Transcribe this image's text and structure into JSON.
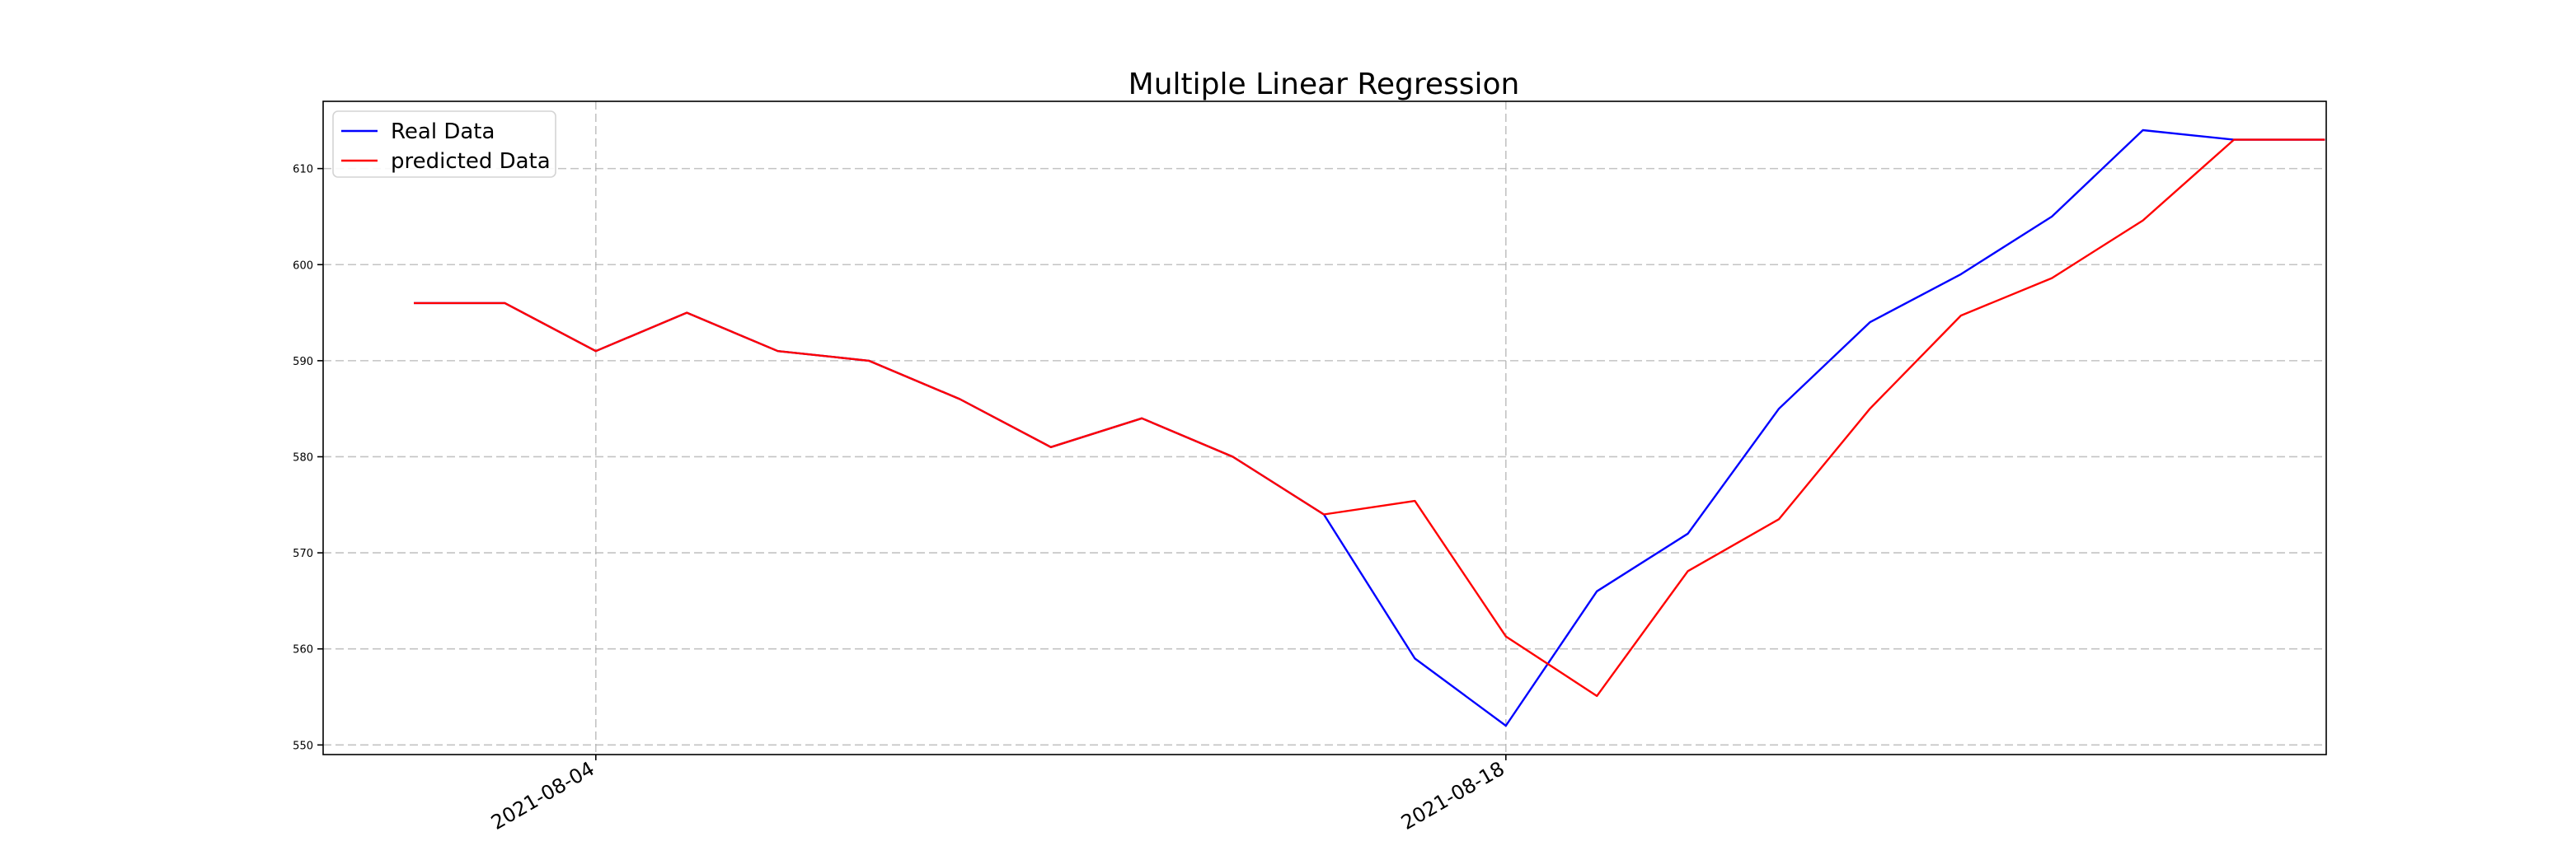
{
  "chart_data": {
    "type": "line",
    "title": "Multiple Linear Regression",
    "xlabel": "",
    "ylabel": "",
    "x": [
      "2021-08-02",
      "2021-08-03",
      "2021-08-04",
      "2021-08-05",
      "2021-08-06",
      "2021-08-09",
      "2021-08-10",
      "2021-08-11",
      "2021-08-12",
      "2021-08-13",
      "2021-08-16",
      "2021-08-17",
      "2021-08-18",
      "2021-08-19",
      "2021-08-20",
      "2021-08-23",
      "2021-08-24",
      "2021-08-25",
      "2021-08-26",
      "2021-08-27",
      "2021-08-30",
      "2021-08-31"
    ],
    "x_ticks": [
      "2021-08-04",
      "2021-08-18"
    ],
    "y_ticks": [
      550,
      560,
      570,
      580,
      590,
      600,
      610
    ],
    "ylim": [
      549,
      617
    ],
    "grid": true,
    "legend_position": "top-left",
    "series": [
      {
        "name": "Real Data",
        "color": "#0000ff",
        "values": [
          596,
          596,
          591,
          595,
          591,
          590,
          586,
          581,
          584,
          580,
          574,
          559,
          552,
          566,
          572,
          585,
          594,
          599,
          605,
          614,
          613,
          613
        ]
      },
      {
        "name": "predicted Data",
        "color": "#ff0000",
        "values": [
          596,
          596,
          591,
          595,
          591,
          590,
          586,
          581,
          584,
          580,
          574,
          575.4,
          561.3,
          555.1,
          568.1,
          573.5,
          585,
          594.7,
          598.6,
          604.6,
          613,
          613
        ]
      }
    ]
  }
}
